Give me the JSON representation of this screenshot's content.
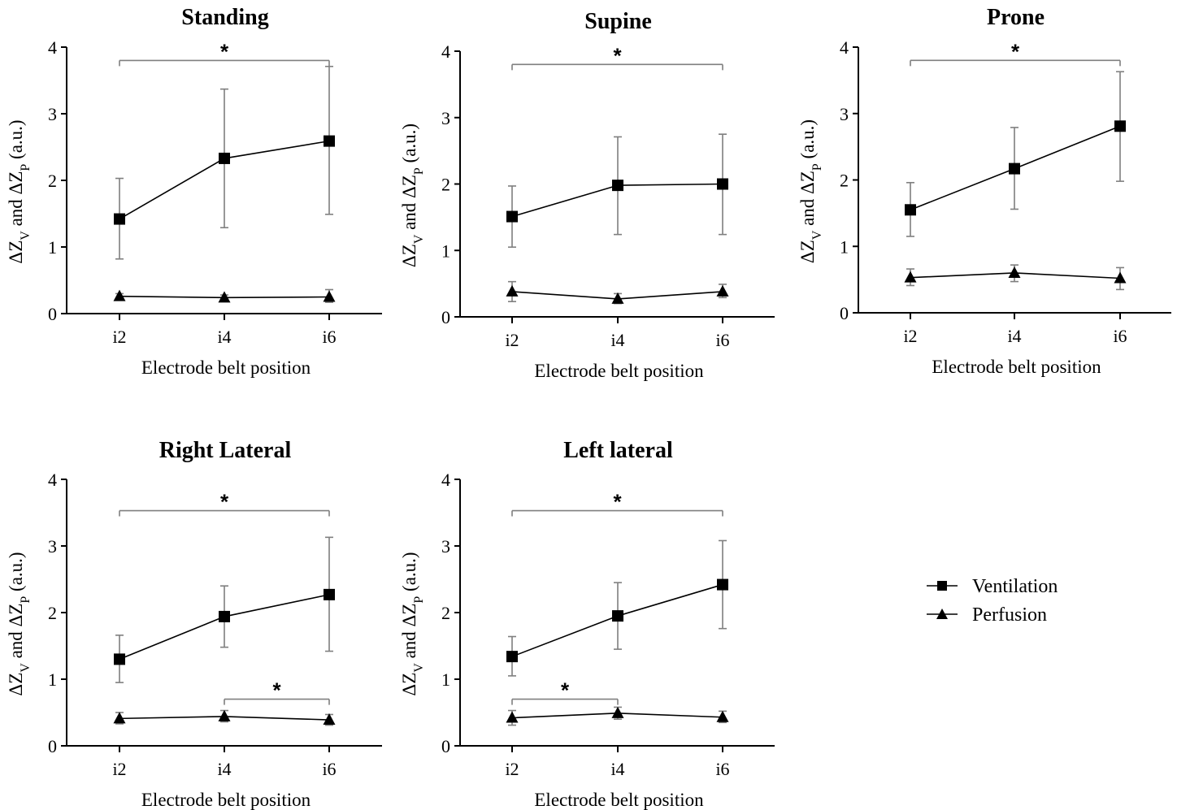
{
  "x_axis_label": "Electrode belt position",
  "y_axis_label": {
    "prefix_v": "ΔZ",
    "sub_v": "V",
    "and": "and",
    "prefix_p": "ΔZ",
    "sub_p": "P",
    "unit": "(a.u.)"
  },
  "legend": {
    "ventilation": "Ventilation",
    "perfusion": "Perfusion"
  },
  "colors": {
    "line": "#000000",
    "error_bar": "#7f7f7f",
    "bracket": "#7f7f7f"
  },
  "chart_data": [
    {
      "type": "line",
      "title": "Standing",
      "categories": [
        "i2",
        "i4",
        "i6"
      ],
      "ylim": [
        0,
        4
      ],
      "yticks": [
        0,
        1,
        2,
        3,
        4
      ],
      "series": [
        {
          "name": "Ventilation",
          "marker": "square",
          "values": [
            1.42,
            2.33,
            2.59
          ],
          "err_low": [
            0.82,
            1.29,
            1.49
          ],
          "err_high": [
            2.03,
            3.37,
            3.71
          ]
        },
        {
          "name": "Perfusion",
          "marker": "triangle",
          "values": [
            0.26,
            0.24,
            0.25
          ],
          "err_low": [
            0.22,
            0.21,
            0.17
          ],
          "err_high": [
            0.3,
            0.28,
            0.36
          ]
        }
      ],
      "significance": [
        {
          "from": "i2",
          "to": "i6",
          "y": 3.8,
          "label": "*"
        }
      ]
    },
    {
      "type": "line",
      "title": "Supine",
      "categories": [
        "i2",
        "i4",
        "i6"
      ],
      "ylim": [
        0,
        4
      ],
      "yticks": [
        0,
        1,
        2,
        3,
        4
      ],
      "series": [
        {
          "name": "Ventilation",
          "marker": "square",
          "values": [
            1.51,
            1.98,
            2.0
          ],
          "err_low": [
            1.05,
            1.24,
            1.24
          ],
          "err_high": [
            1.97,
            2.71,
            2.75
          ]
        },
        {
          "name": "Perfusion",
          "marker": "triangle",
          "values": [
            0.38,
            0.27,
            0.38
          ],
          "err_low": [
            0.23,
            0.2,
            0.29
          ],
          "err_high": [
            0.53,
            0.35,
            0.49
          ]
        }
      ],
      "significance": [
        {
          "from": "i2",
          "to": "i6",
          "y": 3.8,
          "label": "*"
        }
      ]
    },
    {
      "type": "line",
      "title": "Prone",
      "categories": [
        "i2",
        "i4",
        "i6"
      ],
      "ylim": [
        0,
        4
      ],
      "yticks": [
        0,
        1,
        2,
        3,
        4
      ],
      "series": [
        {
          "name": "Ventilation",
          "marker": "square",
          "values": [
            1.55,
            2.17,
            2.81
          ],
          "err_low": [
            1.15,
            1.56,
            1.98
          ],
          "err_high": [
            1.96,
            2.79,
            3.63
          ]
        },
        {
          "name": "Perfusion",
          "marker": "triangle",
          "values": [
            0.53,
            0.6,
            0.52
          ],
          "err_low": [
            0.41,
            0.47,
            0.35
          ],
          "err_high": [
            0.66,
            0.72,
            0.68
          ]
        }
      ],
      "significance": [
        {
          "from": "i2",
          "to": "i6",
          "y": 3.8,
          "label": "*"
        }
      ]
    },
    {
      "type": "line",
      "title": "Right Lateral",
      "categories": [
        "i2",
        "i4",
        "i6"
      ],
      "ylim": [
        0,
        4
      ],
      "yticks": [
        0,
        1,
        2,
        3,
        4
      ],
      "series": [
        {
          "name": "Ventilation",
          "marker": "square",
          "values": [
            1.3,
            1.94,
            2.27
          ],
          "err_low": [
            0.95,
            1.48,
            1.42
          ],
          "err_high": [
            1.66,
            2.4,
            3.13
          ]
        },
        {
          "name": "Perfusion",
          "marker": "triangle",
          "values": [
            0.41,
            0.44,
            0.39
          ],
          "err_low": [
            0.33,
            0.36,
            0.31
          ],
          "err_high": [
            0.5,
            0.53,
            0.47
          ]
        }
      ],
      "significance": [
        {
          "from": "i2",
          "to": "i6",
          "y": 3.53,
          "label": "*"
        },
        {
          "from": "i4",
          "to": "i6",
          "y": 0.7,
          "label": "*"
        }
      ]
    },
    {
      "type": "line",
      "title": "Left lateral",
      "categories": [
        "i2",
        "i4",
        "i6"
      ],
      "ylim": [
        0,
        4
      ],
      "yticks": [
        0,
        1,
        2,
        3,
        4
      ],
      "series": [
        {
          "name": "Ventilation",
          "marker": "square",
          "values": [
            1.34,
            1.95,
            2.42
          ],
          "err_low": [
            1.05,
            1.45,
            1.76
          ],
          "err_high": [
            1.64,
            2.45,
            3.08
          ]
        },
        {
          "name": "Perfusion",
          "marker": "triangle",
          "values": [
            0.42,
            0.49,
            0.43
          ],
          "err_low": [
            0.31,
            0.4,
            0.35
          ],
          "err_high": [
            0.53,
            0.58,
            0.52
          ]
        }
      ],
      "significance": [
        {
          "from": "i2",
          "to": "i6",
          "y": 3.53,
          "label": "*"
        },
        {
          "from": "i2",
          "to": "i4",
          "y": 0.7,
          "label": "*"
        }
      ]
    }
  ]
}
